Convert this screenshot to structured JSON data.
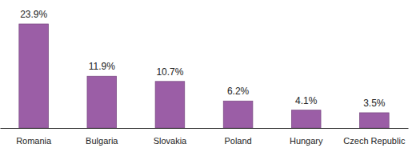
{
  "chart_data": {
    "type": "bar",
    "categories": [
      "Romania",
      "Bulgaria",
      "Slovakia",
      "Poland",
      "Hungary",
      "Czech Republic"
    ],
    "values": [
      23.9,
      11.9,
      10.7,
      6.2,
      4.1,
      3.5
    ],
    "value_labels": [
      "23.9%",
      "11.9%",
      "10.7%",
      "6.2%",
      "4.1%",
      "3.5%"
    ],
    "color": "#9b5ea6",
    "data_labels": true,
    "tick_labels": "x"
  }
}
